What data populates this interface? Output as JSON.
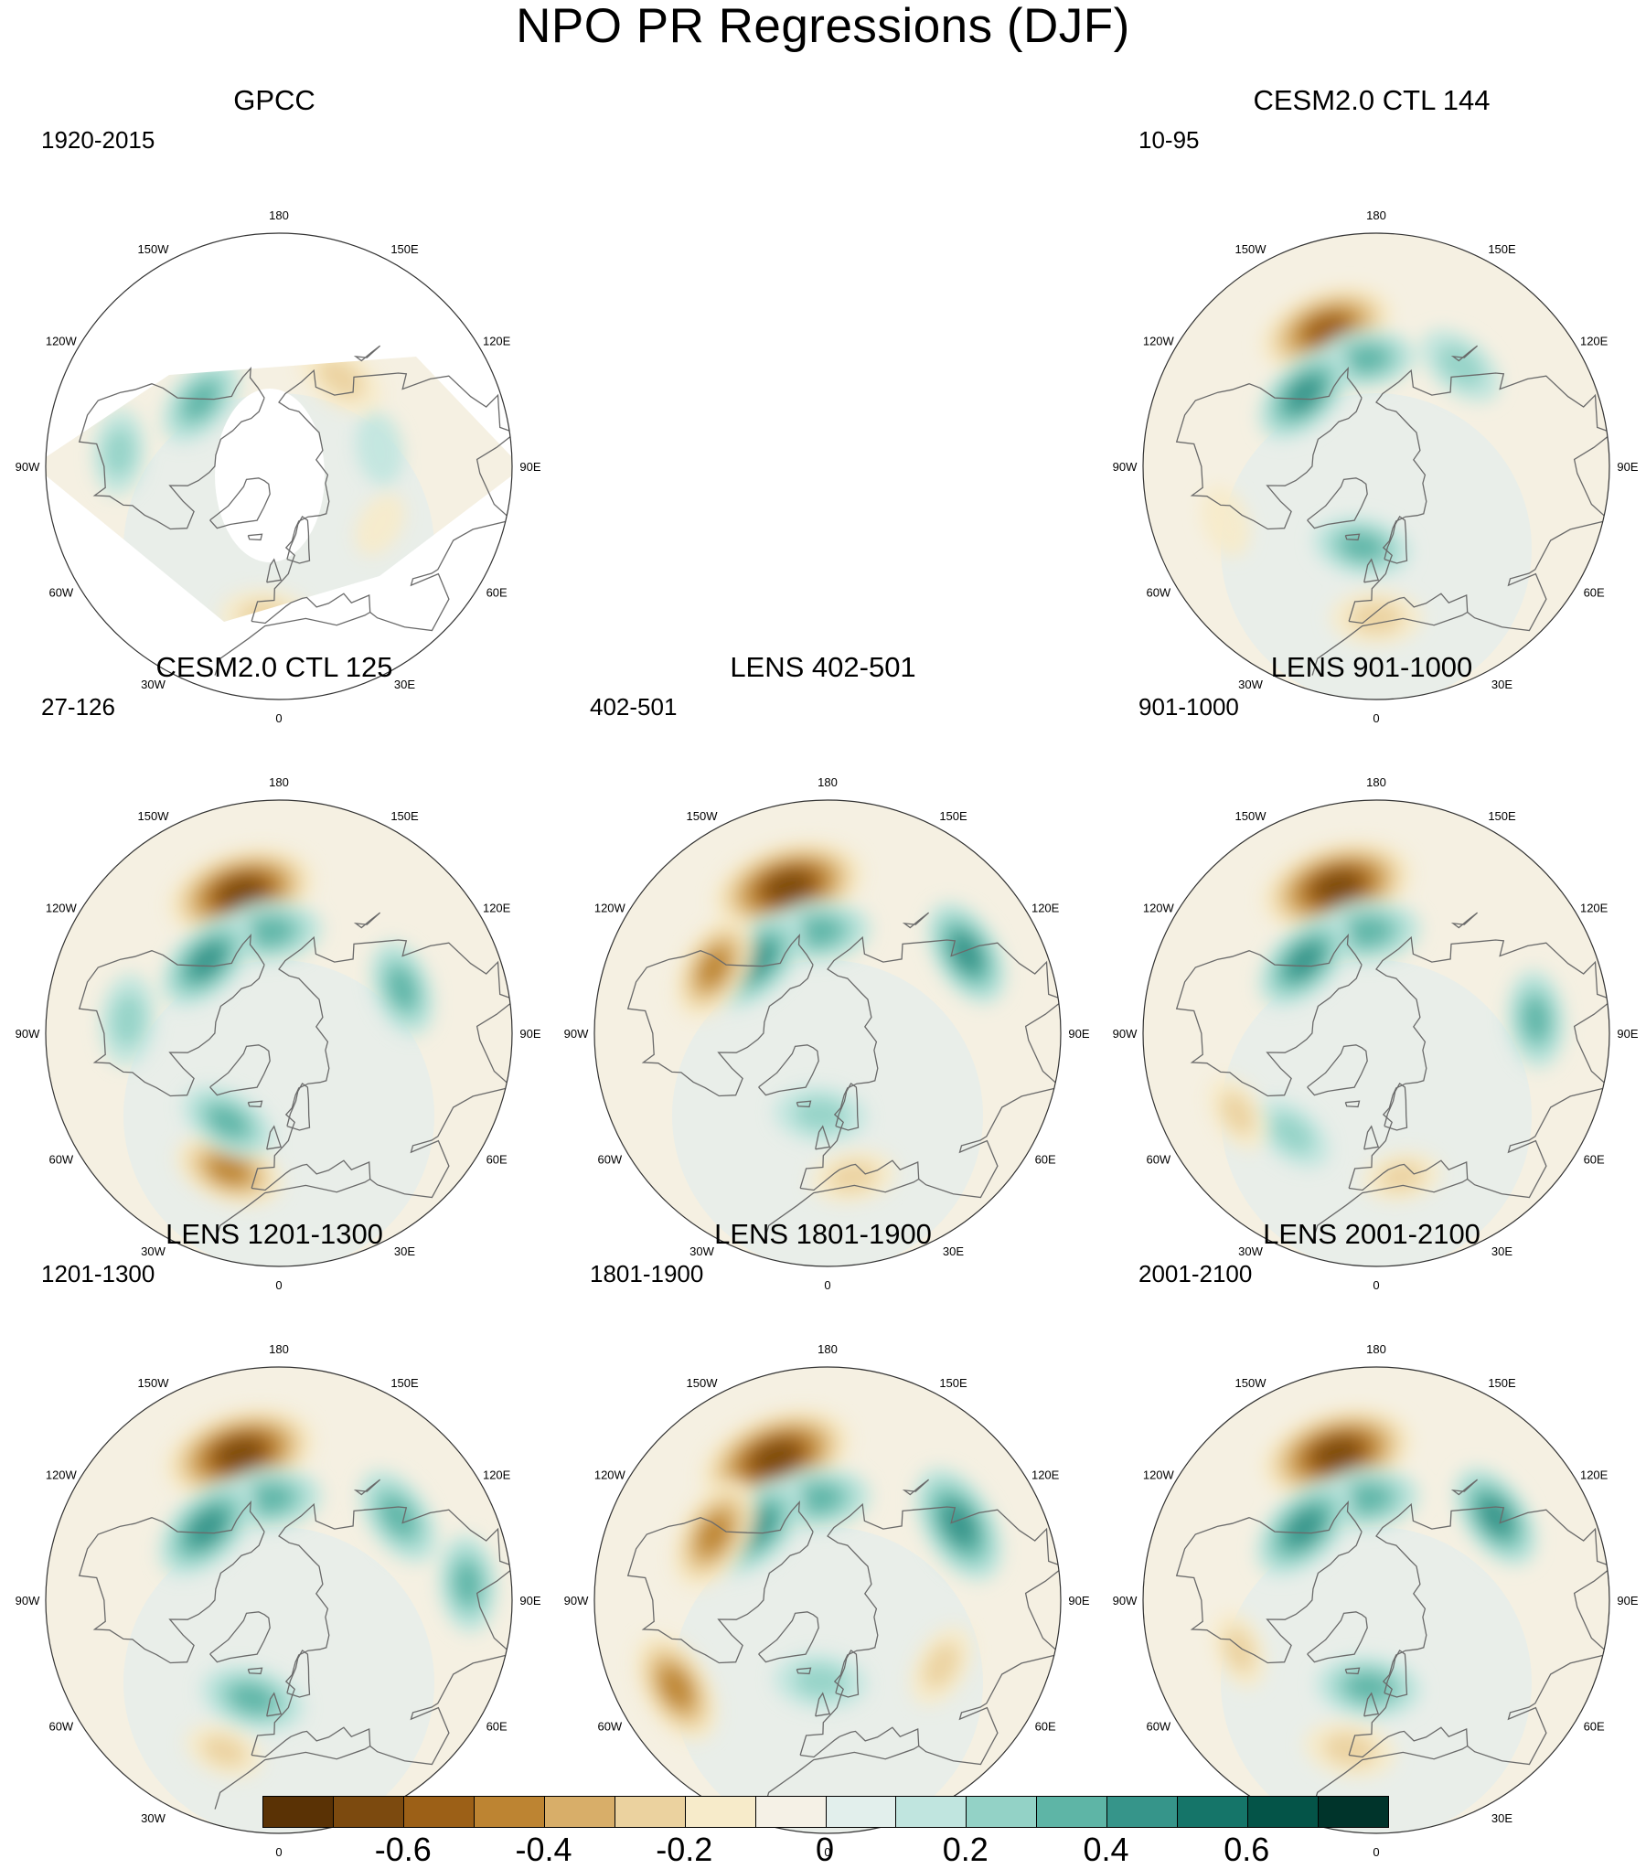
{
  "title": "NPO PR Regressions (DJF)",
  "lon_labels": [
    "180",
    "150E",
    "120E",
    "90E",
    "60E",
    "30E",
    "0",
    "30W",
    "60W",
    "90W",
    "120W",
    "150W"
  ],
  "panels": [
    {
      "id": "gpcc",
      "title": "GPCC",
      "period": "1920-2015",
      "missing_data": true,
      "features": [
        {
          "kind": "blob",
          "lon": 145,
          "lat": 53,
          "sign": "neg",
          "strength": 0.3
        },
        {
          "kind": "blob",
          "lon": -5,
          "lat": 38,
          "sign": "neg",
          "strength": 0.3
        },
        {
          "kind": "blob",
          "lon": -95,
          "lat": 35,
          "sign": "pos",
          "strength": 0.25
        },
        {
          "kind": "blob",
          "lon": -130,
          "lat": 55,
          "sign": "pos",
          "strength": 0.35
        },
        {
          "kind": "blob",
          "lon": 100,
          "lat": 55,
          "sign": "pos",
          "strength": 0.15
        },
        {
          "kind": "blob",
          "lon": 60,
          "lat": 50,
          "sign": "neg",
          "strength": 0.1
        }
      ]
    },
    {
      "id": "ctl144",
      "title": "CESM2.0 CTL 144",
      "period": "10-95",
      "features": [
        {
          "kind": "blob",
          "lon": -160,
          "lat": 40,
          "sign": "neg",
          "strength": 0.65
        },
        {
          "kind": "blob",
          "lon": -175,
          "lat": 53,
          "sign": "pos",
          "strength": 0.35
        },
        {
          "kind": "blob",
          "lon": 140,
          "lat": 45,
          "sign": "pos",
          "strength": 0.3
        },
        {
          "kind": "blob",
          "lon": -135,
          "lat": 55,
          "sign": "pos",
          "strength": 0.45
        },
        {
          "kind": "blob",
          "lon": -10,
          "lat": 62,
          "sign": "pos",
          "strength": 0.35
        },
        {
          "kind": "blob",
          "lon": 0,
          "lat": 38,
          "sign": "neg",
          "strength": 0.3
        },
        {
          "kind": "blob",
          "lon": -70,
          "lat": 35,
          "sign": "neg",
          "strength": 0.15
        }
      ]
    },
    {
      "id": "ctl125",
      "title": "CESM2.0 CTL 125",
      "period": "27-126",
      "features": [
        {
          "kind": "blob",
          "lon": -165,
          "lat": 40,
          "sign": "neg",
          "strength": 0.75
        },
        {
          "kind": "blob",
          "lon": -175,
          "lat": 55,
          "sign": "pos",
          "strength": 0.4
        },
        {
          "kind": "blob",
          "lon": 110,
          "lat": 45,
          "sign": "pos",
          "strength": 0.35
        },
        {
          "kind": "blob",
          "lon": -135,
          "lat": 55,
          "sign": "pos",
          "strength": 0.45
        },
        {
          "kind": "blob",
          "lon": -20,
          "lat": 40,
          "sign": "neg",
          "strength": 0.45
        },
        {
          "kind": "blob",
          "lon": -30,
          "lat": 55,
          "sign": "pos",
          "strength": 0.35
        },
        {
          "kind": "blob",
          "lon": -95,
          "lat": 38,
          "sign": "pos",
          "strength": 0.3
        }
      ]
    },
    {
      "id": "lens402",
      "title": "LENS 402-501",
      "period": "402-501",
      "features": [
        {
          "kind": "blob",
          "lon": -165,
          "lat": 38,
          "sign": "neg",
          "strength": 0.78
        },
        {
          "kind": "blob",
          "lon": -175,
          "lat": 55,
          "sign": "pos",
          "strength": 0.4
        },
        {
          "kind": "blob",
          "lon": 120,
          "lat": 35,
          "sign": "pos",
          "strength": 0.45
        },
        {
          "kind": "blob",
          "lon": -135,
          "lat": 55,
          "sign": "pos",
          "strength": 0.5
        },
        {
          "kind": "blob",
          "lon": -120,
          "lat": 45,
          "sign": "neg",
          "strength": 0.45
        },
        {
          "kind": "blob",
          "lon": -5,
          "lat": 62,
          "sign": "pos",
          "strength": 0.3
        },
        {
          "kind": "blob",
          "lon": 10,
          "lat": 40,
          "sign": "neg",
          "strength": 0.25
        }
      ]
    },
    {
      "id": "lens901",
      "title": "LENS 901-1000",
      "period": "901-1000",
      "features": [
        {
          "kind": "blob",
          "lon": -165,
          "lat": 38,
          "sign": "neg",
          "strength": 0.78
        },
        {
          "kind": "blob",
          "lon": -175,
          "lat": 55,
          "sign": "pos",
          "strength": 0.42
        },
        {
          "kind": "blob",
          "lon": 95,
          "lat": 35,
          "sign": "pos",
          "strength": 0.35
        },
        {
          "kind": "blob",
          "lon": -135,
          "lat": 55,
          "sign": "pos",
          "strength": 0.45
        },
        {
          "kind": "blob",
          "lon": -40,
          "lat": 45,
          "sign": "pos",
          "strength": 0.25
        },
        {
          "kind": "blob",
          "lon": -60,
          "lat": 35,
          "sign": "neg",
          "strength": 0.2
        },
        {
          "kind": "blob",
          "lon": 10,
          "lat": 40,
          "sign": "neg",
          "strength": 0.2
        }
      ]
    },
    {
      "id": "lens1201",
      "title": "LENS 1201-1300",
      "period": "1201-1300",
      "features": [
        {
          "kind": "blob",
          "lon": -165,
          "lat": 38,
          "sign": "neg",
          "strength": 0.78
        },
        {
          "kind": "blob",
          "lon": -175,
          "lat": 55,
          "sign": "pos",
          "strength": 0.4
        },
        {
          "kind": "blob",
          "lon": 125,
          "lat": 40,
          "sign": "pos",
          "strength": 0.4
        },
        {
          "kind": "blob",
          "lon": -135,
          "lat": 55,
          "sign": "pos",
          "strength": 0.5
        },
        {
          "kind": "blob",
          "lon": -15,
          "lat": 55,
          "sign": "pos",
          "strength": 0.4
        },
        {
          "kind": "blob",
          "lon": -20,
          "lat": 35,
          "sign": "neg",
          "strength": 0.2
        },
        {
          "kind": "blob",
          "lon": 95,
          "lat": 25,
          "sign": "pos",
          "strength": 0.35
        }
      ]
    },
    {
      "id": "lens1801",
      "title": "LENS 1801-1900",
      "period": "1801-1900",
      "features": [
        {
          "kind": "blob",
          "lon": -160,
          "lat": 38,
          "sign": "neg",
          "strength": 0.8
        },
        {
          "kind": "blob",
          "lon": -175,
          "lat": 55,
          "sign": "pos",
          "strength": 0.4
        },
        {
          "kind": "blob",
          "lon": 120,
          "lat": 38,
          "sign": "pos",
          "strength": 0.55
        },
        {
          "kind": "blob",
          "lon": -135,
          "lat": 55,
          "sign": "pos",
          "strength": 0.5
        },
        {
          "kind": "blob",
          "lon": -60,
          "lat": 30,
          "sign": "neg",
          "strength": 0.5
        },
        {
          "kind": "blob",
          "lon": -120,
          "lat": 45,
          "sign": "neg",
          "strength": 0.5
        },
        {
          "kind": "blob",
          "lon": -5,
          "lat": 62,
          "sign": "pos",
          "strength": 0.3
        },
        {
          "kind": "blob",
          "lon": 60,
          "lat": 45,
          "sign": "neg",
          "strength": 0.25
        }
      ]
    },
    {
      "id": "lens2001",
      "title": "LENS 2001-2100",
      "period": "2001-2100",
      "features": [
        {
          "kind": "blob",
          "lon": -165,
          "lat": 38,
          "sign": "neg",
          "strength": 0.78
        },
        {
          "kind": "blob",
          "lon": -175,
          "lat": 55,
          "sign": "pos",
          "strength": 0.4
        },
        {
          "kind": "blob",
          "lon": 125,
          "lat": 40,
          "sign": "pos",
          "strength": 0.45
        },
        {
          "kind": "blob",
          "lon": -135,
          "lat": 55,
          "sign": "pos",
          "strength": 0.5
        },
        {
          "kind": "blob",
          "lon": -5,
          "lat": 60,
          "sign": "pos",
          "strength": 0.4
        },
        {
          "kind": "blob",
          "lon": -10,
          "lat": 38,
          "sign": "neg",
          "strength": 0.3
        },
        {
          "kind": "blob",
          "lon": -70,
          "lat": 40,
          "sign": "neg",
          "strength": 0.2
        }
      ]
    }
  ],
  "colorbar": {
    "colors": [
      "#5a3205",
      "#7c4a0f",
      "#9c6017",
      "#bd8432",
      "#d8ae69",
      "#ebd29f",
      "#f7ebca",
      "#f5f1e6",
      "#e2efec",
      "#c0e5df",
      "#93d2c6",
      "#5eb5a6",
      "#36958a",
      "#157569",
      "#045448",
      "#00342b"
    ],
    "labels": [
      "-0.6",
      "-0.4",
      "-0.2",
      "0",
      "0.2",
      "0.4",
      "0.6"
    ],
    "label_values": [
      -0.6,
      -0.4,
      -0.2,
      0,
      0.2,
      0.4,
      0.6
    ],
    "value_min": -0.8,
    "value_max": 0.8
  }
}
